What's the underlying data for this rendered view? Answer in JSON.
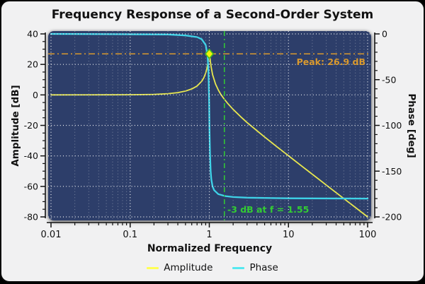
{
  "window": {
    "background": "#f1f1f2",
    "frame_color": "#0a0a0a"
  },
  "chart_data": {
    "type": "line",
    "title": "Frequency Response of a Second-Order System",
    "xlabel": "Normalized Frequency",
    "ylabel_left": "Amplitude [dB]",
    "ylabel_right": "Phase [deg]",
    "x_scale": "log",
    "xlim": [
      0.01,
      100
    ],
    "ylim_left": [
      -80,
      40
    ],
    "ylim_right": [
      -200,
      0
    ],
    "x_major_ticks": [
      0.01,
      0.1,
      1,
      10,
      100
    ],
    "x_tick_labels": [
      "0.01",
      "0.1",
      "1",
      "10",
      "100"
    ],
    "y_left_major_ticks": [
      40,
      20,
      0,
      -20,
      -40,
      -60,
      -80
    ],
    "y_left_minor_step": 5,
    "y_right_major_ticks": [
      0,
      -50,
      -100,
      -150,
      -200
    ],
    "y_right_minor_step": 10,
    "panel_background": "#2d3e6a",
    "grid": {
      "major_color": "#ffffff",
      "minor_color": "#8b95ab",
      "style": "dotted",
      "major_on": true,
      "minor_on": true
    },
    "series": [
      {
        "name": "Amplitude",
        "axis": "left",
        "color": "#e9e84e",
        "width": 1.8,
        "points": [
          [
            0.01,
            0
          ],
          [
            0.05,
            0.05
          ],
          [
            0.1,
            0.1
          ],
          [
            0.2,
            0.35
          ],
          [
            0.3,
            0.8
          ],
          [
            0.4,
            1.5
          ],
          [
            0.5,
            2.5
          ],
          [
            0.6,
            3.9
          ],
          [
            0.7,
            5.8
          ],
          [
            0.8,
            8.9
          ],
          [
            0.85,
            11.1
          ],
          [
            0.9,
            14.4
          ],
          [
            0.93,
            17.0
          ],
          [
            0.95,
            19.5
          ],
          [
            0.97,
            22.7
          ],
          [
            0.98,
            24.5
          ],
          [
            0.99,
            26.2
          ],
          [
            1.0,
            26.9
          ],
          [
            1.01,
            26.1
          ],
          [
            1.02,
            24.2
          ],
          [
            1.03,
            22.3
          ],
          [
            1.05,
            18.9
          ],
          [
            1.1,
            13.3
          ],
          [
            1.2,
            7.1
          ],
          [
            1.3,
            3.2
          ],
          [
            1.4,
            0.3
          ],
          [
            1.55,
            -2.9
          ],
          [
            1.7,
            -5.5
          ],
          [
            2,
            -9.5
          ],
          [
            2.5,
            -14.4
          ],
          [
            3,
            -18.1
          ],
          [
            4,
            -23.5
          ],
          [
            5,
            -27.6
          ],
          [
            7,
            -33.6
          ],
          [
            10,
            -39.9
          ],
          [
            15,
            -47
          ],
          [
            20,
            -52
          ],
          [
            30,
            -59.1
          ],
          [
            50,
            -68
          ],
          [
            70,
            -73.8
          ],
          [
            100,
            -80
          ]
        ]
      },
      {
        "name": "Phase",
        "axis": "right",
        "color": "#3ed3e8",
        "width": 2.3,
        "points": [
          [
            0.01,
            0
          ],
          [
            0.3,
            -0.6
          ],
          [
            0.5,
            -1.7
          ],
          [
            0.7,
            -3.5
          ],
          [
            0.8,
            -5.7
          ],
          [
            0.9,
            -12.1
          ],
          [
            0.95,
            -23.8
          ],
          [
            0.97,
            -36.5
          ],
          [
            0.98,
            -48.2
          ],
          [
            0.99,
            -66
          ],
          [
            0.995,
            -77.5
          ],
          [
            1.0,
            -90
          ],
          [
            1.005,
            -102.5
          ],
          [
            1.01,
            -113.8
          ],
          [
            1.02,
            -131.2
          ],
          [
            1.04,
            -150
          ],
          [
            1.06,
            -158.8
          ],
          [
            1.1,
            -166.7
          ],
          [
            1.15,
            -170.8
          ],
          [
            1.3,
            -175.1
          ],
          [
            1.6,
            -177.3
          ],
          [
            2,
            -178.3
          ],
          [
            3,
            -179
          ],
          [
            10,
            -179.7
          ],
          [
            100,
            -180
          ]
        ]
      }
    ],
    "annotations": [
      {
        "id": "peak",
        "type": "hline-with-marker",
        "label": "Peak: 26.9 dB",
        "y_db": 26.9,
        "marker_f": 1.0,
        "color": "#d9992e",
        "marker_fill": "#f2f20a",
        "marker_stroke": "#44bb22"
      },
      {
        "id": "bandwidth",
        "type": "vline",
        "label": "-3 dB at f = 1.55",
        "x_f": 1.55,
        "color": "#33cc33"
      }
    ],
    "legend": {
      "position": "bottom",
      "items": [
        {
          "label": "Amplitude",
          "color": "#ffff55"
        },
        {
          "label": "Phase",
          "color": "#55e8f0"
        }
      ]
    }
  }
}
